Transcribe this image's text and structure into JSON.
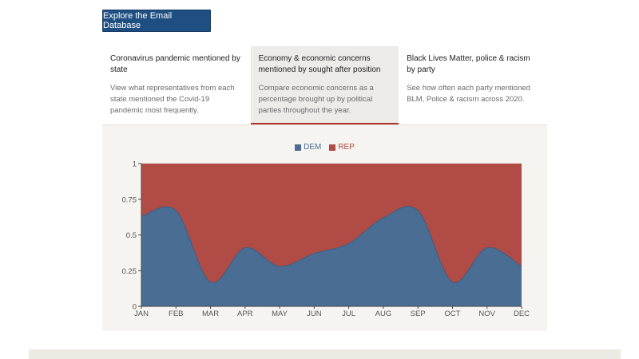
{
  "explore_button": {
    "label": "Explore the Email Database"
  },
  "tabs": [
    {
      "title": "Coronavirus pandemic mentioned by state",
      "description": "View what representatives from each state mentioned the Covid-19 pandemic most frequently.",
      "active": false
    },
    {
      "title": "Economy & economic concerns mentioned by sought after position",
      "description": "Compare economic concerns as a percentage brought up by political parties throughout the year.",
      "active": true
    },
    {
      "title": "Black Lives Matter, police & racism by party",
      "description": "See how often each party mentioned BLM, Police & racism across 2020.",
      "active": false
    }
  ],
  "colors": {
    "dem": "#4a6d94",
    "rep": "#b04c45",
    "accent": "#1f4f82",
    "active_tab_border": "#b0322f"
  },
  "chart_data": {
    "type": "area",
    "stacked": true,
    "categories": [
      "JAN",
      "FEB",
      "MAR",
      "APR",
      "MAY",
      "JUN",
      "JUL",
      "AUG",
      "SEP",
      "OCT",
      "NOV",
      "DEC"
    ],
    "series": [
      {
        "name": "DEM",
        "values": [
          0.63,
          0.67,
          0.17,
          0.41,
          0.28,
          0.37,
          0.44,
          0.62,
          0.67,
          0.17,
          0.41,
          0.28
        ]
      },
      {
        "name": "REP",
        "values": [
          0.37,
          0.33,
          0.83,
          0.59,
          0.72,
          0.63,
          0.56,
          0.38,
          0.33,
          0.83,
          0.59,
          0.72
        ]
      }
    ],
    "ylim": [
      0,
      1
    ],
    "yticks": [
      "0",
      "0.25",
      "0.5",
      "0.75",
      "1"
    ],
    "yticks_values": [
      0,
      0.25,
      0.5,
      0.75,
      1
    ],
    "legend_position": "top-center",
    "grid": false
  }
}
